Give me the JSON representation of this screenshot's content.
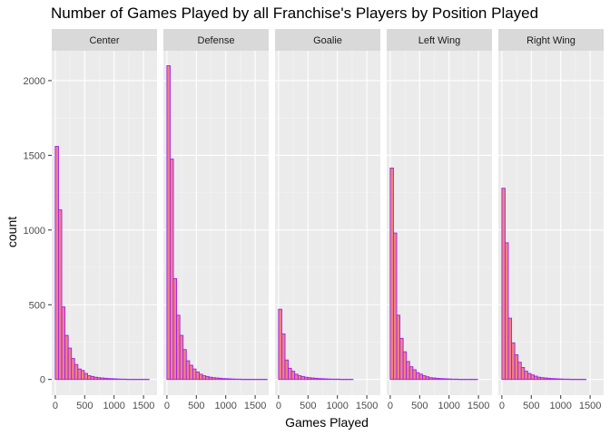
{
  "chart_data": {
    "type": "bar",
    "subtype": "faceted-histogram",
    "title": "Number of Games Played by all Franchise's Players by Position Played",
    "xlabel": "Games Played",
    "ylabel": "count",
    "xlim": [
      -60,
      1730
    ],
    "ylim": [
      -105,
      2200
    ],
    "x_ticks": [
      0,
      500,
      1000,
      1500
    ],
    "x_tick_labels": [
      "0",
      "500",
      "1000",
      "1500"
    ],
    "y_ticks": [
      0,
      500,
      1000,
      1500,
      2000
    ],
    "y_tick_labels": [
      "0",
      "500",
      "1000",
      "1500",
      "2000"
    ],
    "bin_width": 55,
    "bin_start": 0,
    "grid": true,
    "legend": "none",
    "colors": {
      "bar_fill": "#f08080",
      "bar_stroke": "#a020f0",
      "panel_bg": "#ebebeb",
      "strip_bg": "#d9d9d9",
      "grid_major": "#ffffff",
      "grid_minor": "#f5f5f5"
    },
    "facets": [
      {
        "name": "Center",
        "values": [
          1560,
          1135,
          485,
          295,
          210,
          140,
          100,
          70,
          60,
          40,
          25,
          20,
          15,
          12,
          10,
          8,
          6,
          5,
          4,
          3,
          2,
          2,
          1,
          1,
          1,
          1,
          1,
          1,
          1
        ]
      },
      {
        "name": "Defense",
        "values": [
          2100,
          1475,
          675,
          430,
          295,
          200,
          125,
          95,
          70,
          50,
          35,
          25,
          20,
          15,
          12,
          10,
          8,
          6,
          5,
          4,
          3,
          2,
          2,
          1,
          1,
          1,
          1,
          1,
          1,
          1,
          1
        ]
      },
      {
        "name": "Goalie",
        "values": [
          470,
          305,
          130,
          75,
          55,
          35,
          25,
          20,
          15,
          12,
          10,
          8,
          6,
          5,
          4,
          3,
          2,
          2,
          2,
          1,
          1,
          1,
          1
        ]
      },
      {
        "name": "Left Wing",
        "values": [
          1415,
          980,
          430,
          275,
          185,
          120,
          85,
          65,
          45,
          35,
          25,
          18,
          12,
          10,
          8,
          6,
          5,
          4,
          3,
          2,
          2,
          1,
          1,
          1,
          1,
          1,
          1
        ]
      },
      {
        "name": "Right Wing",
        "values": [
          1280,
          915,
          410,
          245,
          165,
          115,
          80,
          55,
          40,
          30,
          22,
          15,
          12,
          10,
          8,
          6,
          5,
          4,
          3,
          2,
          2,
          1,
          1,
          1,
          1,
          1
        ]
      }
    ]
  }
}
